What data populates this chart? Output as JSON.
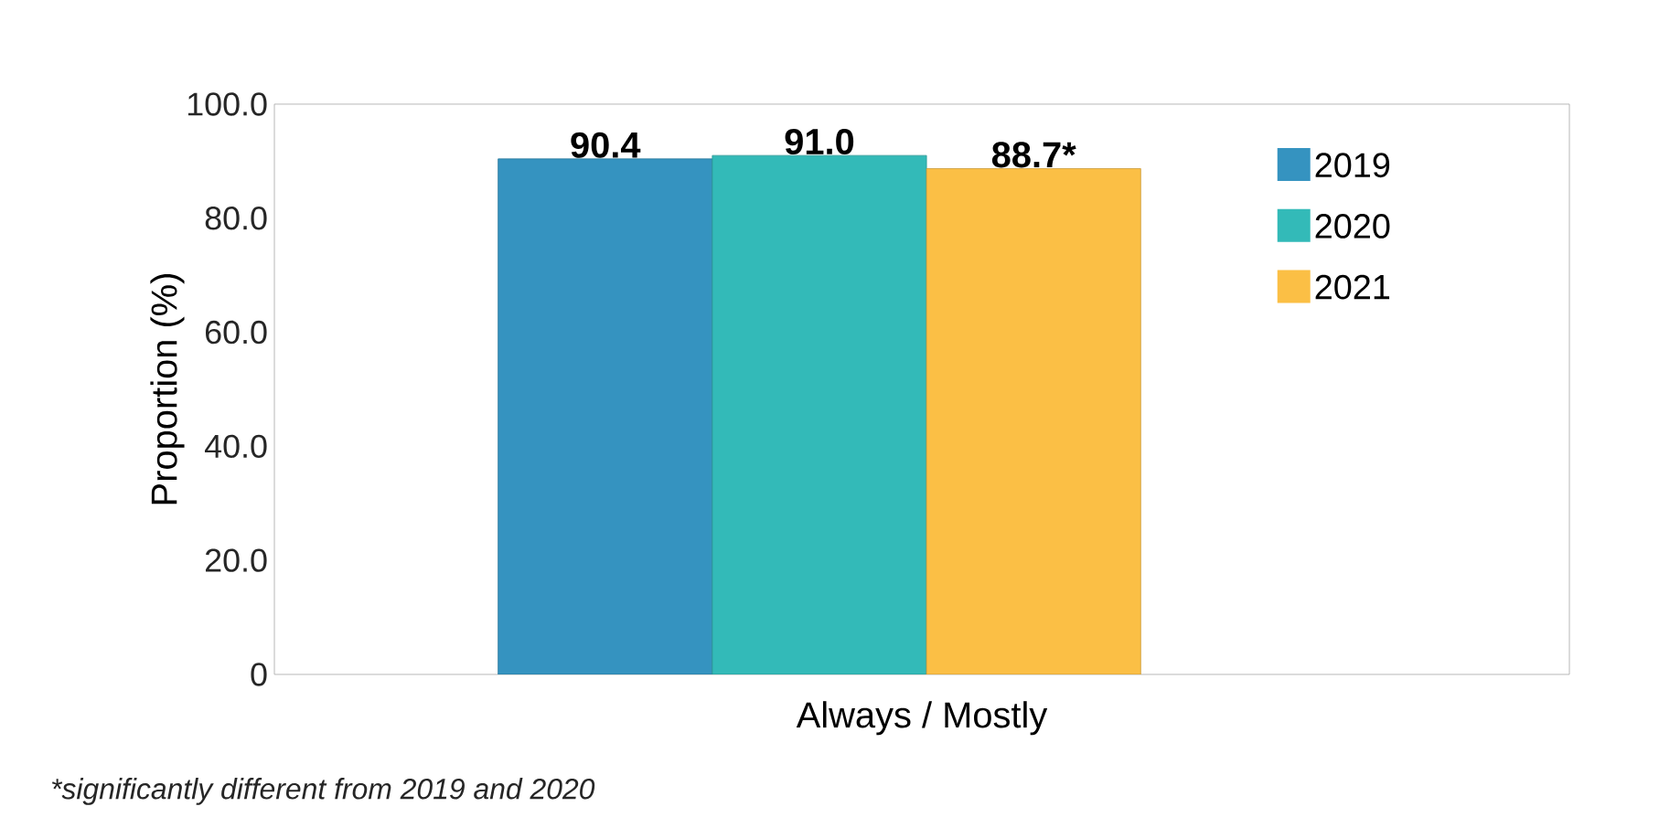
{
  "chart_data": {
    "type": "bar",
    "ylabel": "Proportion (%)",
    "xlabel": "Always / Mostly",
    "categories": [
      null
    ],
    "series": [
      {
        "name": "2019",
        "color": "#3593c0",
        "values": [
          90.4
        ],
        "value_labels": [
          "90.4"
        ]
      },
      {
        "name": "2020",
        "color": "#33bab8",
        "values": [
          91.0
        ],
        "value_labels": [
          "91.0"
        ]
      },
      {
        "name": "2021",
        "color": "#fbbf45",
        "values": [
          88.7
        ],
        "value_labels": [
          "88.7*"
        ]
      }
    ],
    "ylim": [
      0,
      100
    ],
    "yticks": [
      {
        "value": 0,
        "label": "0"
      },
      {
        "value": 20,
        "label": "20.0"
      },
      {
        "value": 40,
        "label": "40.0"
      },
      {
        "value": 60,
        "label": "60.0"
      },
      {
        "value": 80,
        "label": "80.0"
      },
      {
        "value": 100,
        "label": "100.0"
      }
    ],
    "legend": "right",
    "annotations": [
      "*significantly different from 2019 and 2020"
    ]
  }
}
